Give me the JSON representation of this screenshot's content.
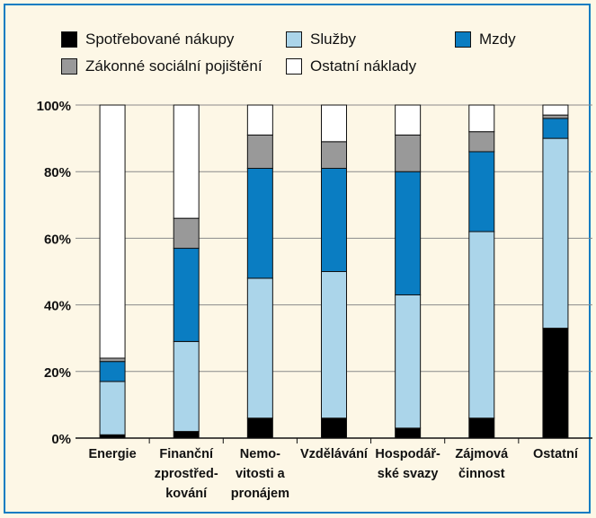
{
  "chart_data": {
    "type": "bar",
    "stacked": true,
    "categories": [
      "Energie",
      "Finanční zprostřed-kování",
      "Nemo-vitosti a pronájem",
      "Vzdělávání",
      "Hospodář-ské svazy",
      "Zájmová činnost",
      "Ostatní"
    ],
    "category_lines": [
      [
        "Energie"
      ],
      [
        "Finanční",
        "zprostřed-",
        "kování"
      ],
      [
        "Nemo-",
        "vitosti a",
        "pronájem"
      ],
      [
        "Vzdělávání"
      ],
      [
        "Hospodář-",
        "ské svazy"
      ],
      [
        "Zájmová",
        "činnost"
      ],
      [
        "Ostatní"
      ]
    ],
    "series": [
      {
        "name": "Spotřebované nákupy",
        "color": "#000000",
        "values": [
          1,
          2,
          6,
          6,
          3,
          6,
          33
        ]
      },
      {
        "name": "Služby",
        "color": "#abd5ea",
        "values": [
          16,
          27,
          42,
          44,
          40,
          56,
          57
        ]
      },
      {
        "name": "Mzdy",
        "color": "#0a7dc2",
        "values": [
          6,
          28,
          33,
          31,
          37,
          24,
          6
        ]
      },
      {
        "name": "Zákonné sociální pojištění",
        "color": "#999999",
        "values": [
          1,
          9,
          10,
          8,
          11,
          6,
          1
        ]
      },
      {
        "name": "Ostatní náklady",
        "color": "#ffffff",
        "values": [
          76,
          34,
          9,
          11,
          9,
          8,
          3
        ]
      }
    ],
    "yticks": [
      "0%",
      "20%",
      "40%",
      "60%",
      "80%",
      "100%"
    ],
    "ylim": [
      0,
      100
    ],
    "grid": true,
    "legend": "top"
  }
}
